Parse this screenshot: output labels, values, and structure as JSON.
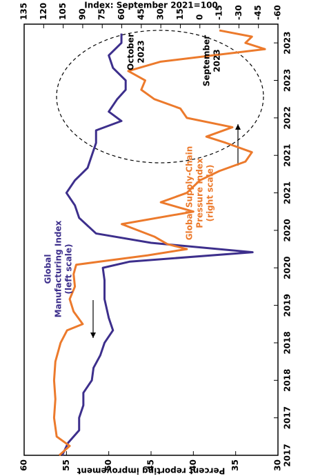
{
  "chart_data": {
    "type": "line",
    "ylabel": "Percent reporting improvement",
    "y2label": "Index: September 2021=100",
    "xlim": [
      2017,
      2023.9
    ],
    "xticks": [
      {
        "value": 2017,
        "label": "2017"
      },
      {
        "value": 2017.6,
        "label": "2017"
      },
      {
        "value": 2018.2,
        "label": "2018"
      },
      {
        "value": 2018.8,
        "label": "2018"
      },
      {
        "value": 2019.4,
        "label": "2019"
      },
      {
        "value": 2020,
        "label": "2020"
      },
      {
        "value": 2020.6,
        "label": "2020"
      },
      {
        "value": 2021.2,
        "label": "2021"
      },
      {
        "value": 2021.8,
        "label": "2021"
      },
      {
        "value": 2022.4,
        "label": "2022"
      },
      {
        "value": 2023,
        "label": "2023"
      },
      {
        "value": 2023.6,
        "label": "2023"
      }
    ],
    "ylim": [
      30,
      60
    ],
    "yticks": [
      30,
      35,
      40,
      45,
      50,
      55,
      60
    ],
    "y2lim": [
      -60,
      135
    ],
    "y2ticks": [
      -60,
      -45,
      -30,
      -15,
      0,
      15,
      30,
      45,
      60,
      75,
      90,
      105,
      120,
      135
    ],
    "series": [
      {
        "color": "#3d2f8c",
        "axis": "y",
        "x": [
          2017.0,
          2017.2,
          2017.4,
          2017.6,
          2017.8,
          2018.0,
          2018.2,
          2018.4,
          2018.6,
          2018.8,
          2019.0,
          2019.2,
          2019.5,
          2019.8,
          2020.0,
          2020.1,
          2020.25,
          2020.4,
          2020.55,
          2020.8,
          2021.0,
          2021.2,
          2021.4,
          2021.6,
          2021.8,
          2022.0,
          2022.2,
          2022.35,
          2022.5,
          2022.7,
          2022.85,
          2023.0,
          2023.2,
          2023.4,
          2023.6,
          2023.75
        ],
        "values": [
          55.5,
          54.8,
          53.5,
          53.5,
          53,
          53,
          52,
          51.8,
          51,
          50.5,
          49.5,
          50,
          50.5,
          50.5,
          50.7,
          47.5,
          33,
          45,
          51.5,
          53.5,
          54,
          55,
          54,
          52.5,
          52,
          51.5,
          51.5,
          48.5,
          50,
          49,
          48,
          48,
          49.5,
          50,
          48.5,
          48.5
        ]
      },
      {
        "color": "#ec7a2c",
        "axis": "y2",
        "x": [
          2017.0,
          2017.15,
          2017.3,
          2017.6,
          2017.9,
          2018.2,
          2018.5,
          2018.8,
          2019.0,
          2019.1,
          2019.3,
          2019.5,
          2019.7,
          2019.9,
          2020.05,
          2020.2,
          2020.3,
          2020.38,
          2020.5,
          2020.7,
          2020.9,
          2021.05,
          2021.2,
          2021.4,
          2021.55,
          2021.7,
          2021.85,
          2022.0,
          2022.1,
          2022.25,
          2022.4,
          2022.55,
          2022.7,
          2022.85,
          2023.0,
          2023.15,
          2023.3,
          2023.4,
          2023.5,
          2023.6,
          2023.7,
          2023.8
        ],
        "values": [
          108,
          100,
          110,
          112,
          111,
          112,
          111,
          107,
          102,
          90,
          97,
          100,
          96,
          97,
          95,
          40,
          10,
          25,
          35,
          60,
          5,
          30,
          10,
          0,
          -15,
          -35,
          -40,
          -20,
          -5,
          -25,
          10,
          15,
          35,
          45,
          42,
          55,
          30,
          -10,
          -50,
          -35,
          -40,
          -15
        ]
      }
    ],
    "annotations": [
      {
        "lines": [
          "Global",
          "Manufacturing Index",
          "(left scale)"
        ],
        "color": "#3d2f8c"
      },
      {
        "lines": [
          "Global Supply-Chain",
          "Pressure Index",
          "(right scale)"
        ],
        "color": "#ec7a2c"
      },
      {
        "lines": [
          "October",
          "2023"
        ],
        "color": "#000000"
      },
      {
        "lines": [
          "September",
          "2023"
        ],
        "color": "#000000"
      }
    ]
  }
}
